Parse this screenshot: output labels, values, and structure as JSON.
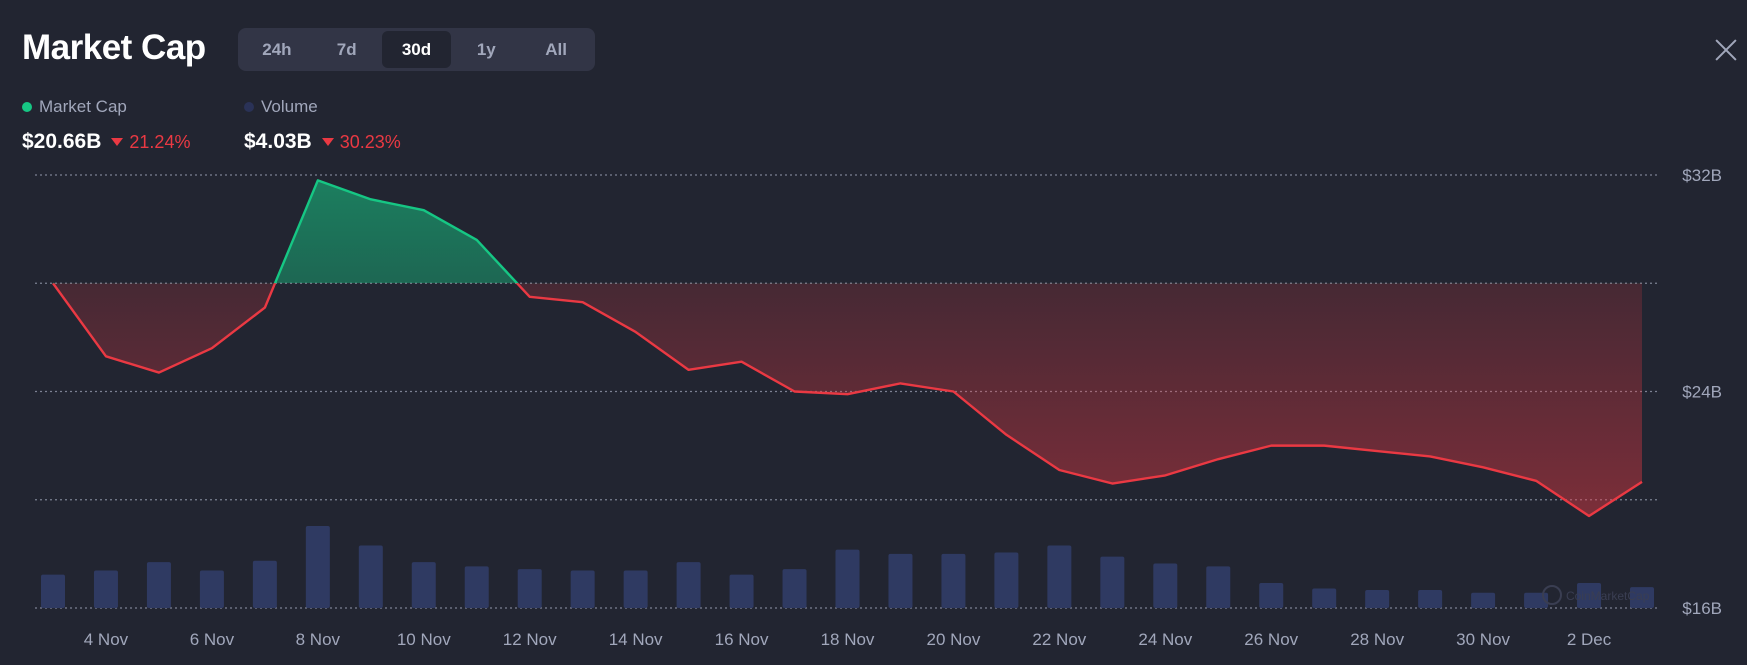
{
  "header": {
    "title": "Market Cap",
    "ranges": [
      "24h",
      "7d",
      "30d",
      "1y",
      "All"
    ],
    "active_range": "30d"
  },
  "legend": {
    "market_cap": {
      "label": "Market Cap",
      "value": "$20.66B",
      "change": "21.24%",
      "color": "#16c784"
    },
    "volume": {
      "label": "Volume",
      "value": "$4.03B",
      "change": "30.23%",
      "color": "#2a3257"
    }
  },
  "colors": {
    "up": "#16c784",
    "down": "#ea3943",
    "bar": "#2f3a62",
    "background": "#222531"
  },
  "watermark": "CoinMarketCap",
  "chart_data": {
    "type": "line",
    "series": [
      {
        "name": "Market Cap",
        "unit": "B USD",
        "x": [
          "3 Nov",
          "4 Nov",
          "5 Nov",
          "6 Nov",
          "7 Nov",
          "8 Nov",
          "9 Nov",
          "10 Nov",
          "11 Nov",
          "12 Nov",
          "13 Nov",
          "14 Nov",
          "15 Nov",
          "16 Nov",
          "17 Nov",
          "18 Nov",
          "19 Nov",
          "20 Nov",
          "21 Nov",
          "22 Nov",
          "23 Nov",
          "24 Nov",
          "25 Nov",
          "26 Nov",
          "27 Nov",
          "28 Nov",
          "29 Nov",
          "30 Nov",
          "1 Dec",
          "2 Dec",
          "3 Dec"
        ],
        "values": [
          28.0,
          25.3,
          24.7,
          25.6,
          27.1,
          31.8,
          31.1,
          30.7,
          29.6,
          27.5,
          27.3,
          26.2,
          24.8,
          25.1,
          24.0,
          23.9,
          24.3,
          24.0,
          22.4,
          21.1,
          20.6,
          20.9,
          21.5,
          22.0,
          22.0,
          21.8,
          21.6,
          21.2,
          20.7,
          19.4,
          20.66
        ]
      },
      {
        "name": "Volume",
        "type": "bar",
        "values": [
          1.2,
          1.35,
          1.65,
          1.35,
          1.7,
          2.95,
          2.25,
          1.65,
          1.5,
          1.4,
          1.35,
          1.35,
          1.65,
          1.2,
          1.4,
          2.1,
          1.95,
          1.95,
          2.0,
          2.25,
          1.85,
          1.6,
          1.5,
          0.9,
          0.7,
          0.65,
          0.65,
          0.55,
          0.55,
          0.9,
          0.75
        ]
      }
    ],
    "baseline": 28.0,
    "y_ticks": [
      "$32B",
      "$24B",
      "$16B"
    ],
    "ylim": [
      16,
      32
    ],
    "x_ticks": [
      "4 Nov",
      "6 Nov",
      "8 Nov",
      "10 Nov",
      "12 Nov",
      "14 Nov",
      "16 Nov",
      "18 Nov",
      "20 Nov",
      "22 Nov",
      "24 Nov",
      "26 Nov",
      "28 Nov",
      "30 Nov",
      "2 Dec"
    ],
    "grid": true
  }
}
